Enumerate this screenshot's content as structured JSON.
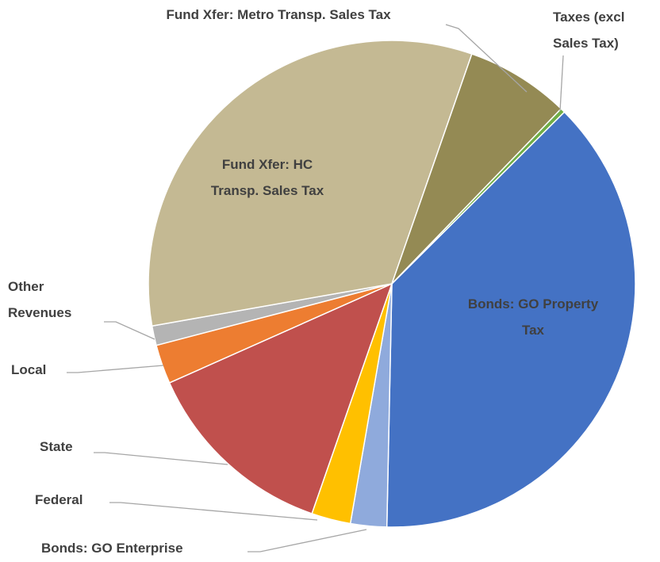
{
  "chart_data": {
    "type": "pie",
    "categories": [
      "Bonds: GO Property Tax",
      "Bonds: GO Enterprise",
      "Federal",
      "State",
      "Local",
      "Other Revenues",
      "Fund Xfer: HC Transp. Sales Tax",
      "Fund Xfer: Metro Transp. Sales Tax",
      "Taxes (excl Sales Tax)"
    ],
    "values": [
      37.8,
      2.4,
      2.6,
      13.0,
      2.6,
      1.3,
      33.1,
      6.9,
      0.3
    ],
    "colors": [
      "#4472c4",
      "#8faadc",
      "#ffc000",
      "#c0504d",
      "#ed7d31",
      "#b4b4b4",
      "#c4b993",
      "#948a54",
      "#70ad47"
    ]
  }
}
